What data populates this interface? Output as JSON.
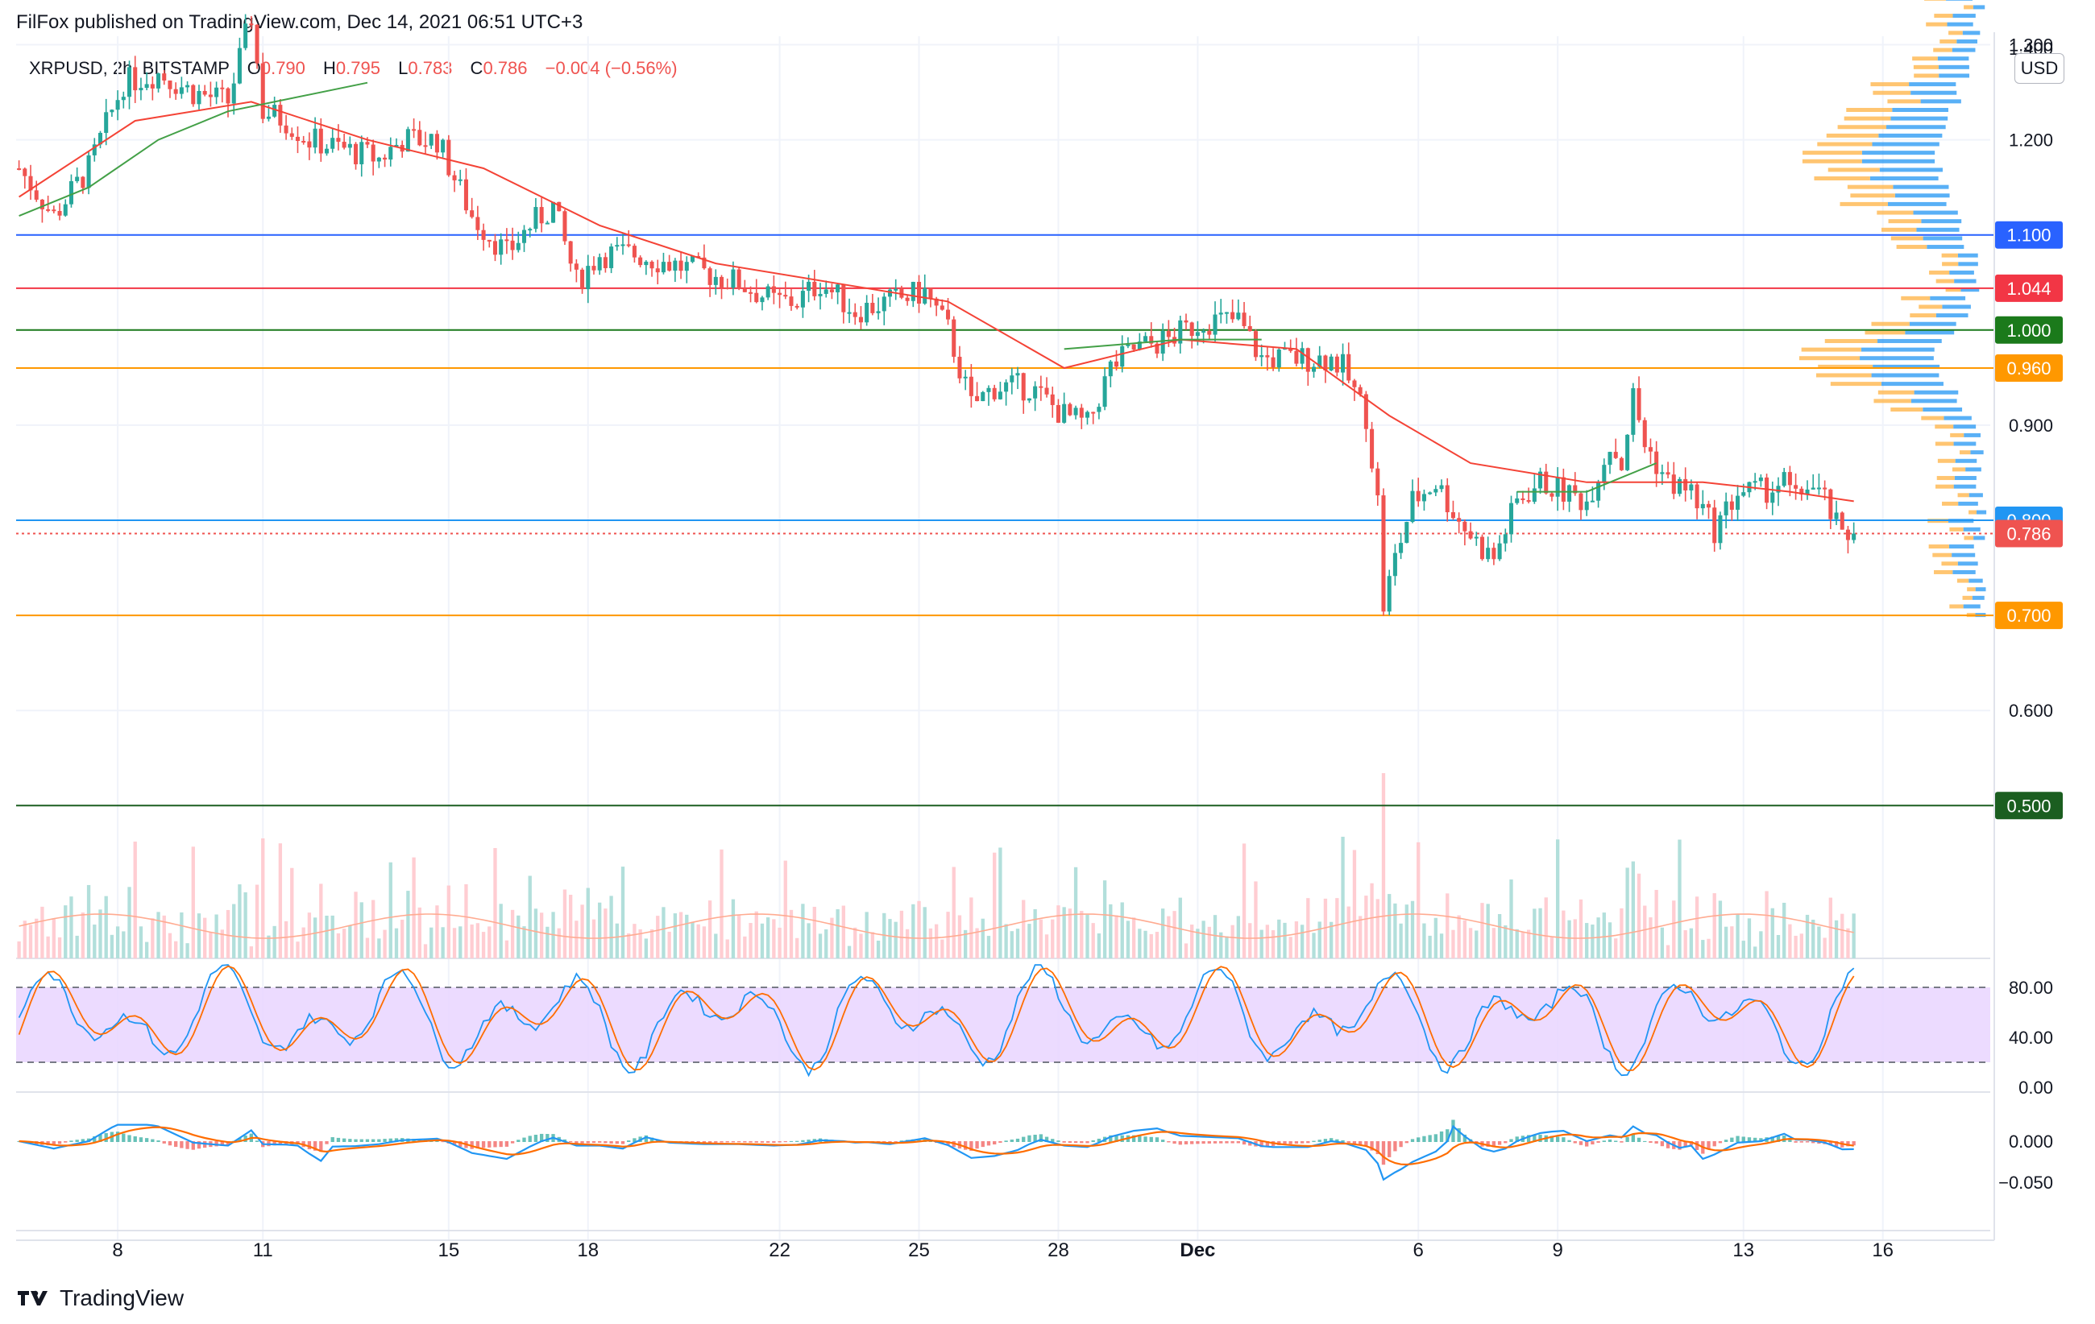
{
  "header": {
    "publisher": "FilFox published on TradingView.com, Dec 14, 2021 06:51 UTC+3"
  },
  "legend": {
    "symbol": "XRPUSD, 2h, BITSTAMP",
    "open_label": "O",
    "open": "0.790",
    "high_label": "H",
    "high": "0.795",
    "low_label": "L",
    "low": "0.783",
    "close_label": "C",
    "close": "0.786",
    "change": "−0.004 (−0.56%)"
  },
  "currency_button": "USD",
  "brand": {
    "name": "TradingView"
  },
  "colors": {
    "up": "#26a69a",
    "down": "#ef5350",
    "ema_red": "#f44336",
    "sma_green": "#43a047",
    "blue_line": "#2962ff",
    "green_line": "#1b5e20",
    "orange_line": "#ff9800",
    "stoch_fill": "#e9d5ff",
    "macd_blue": "#2196f3",
    "macd_orange": "#ff6d00"
  },
  "chart_data": [
    {
      "type": "candlestick",
      "ylim": [
        0.5,
        1.4
      ],
      "y_ticks": [
        "1.300",
        "1.200",
        "0.900",
        "0.600"
      ],
      "y_top_partial": "1.400",
      "x_tick_labels": [
        "8",
        "11",
        "15",
        "18",
        "22",
        "25",
        "28",
        "Dec",
        "6",
        "9",
        "13",
        "16"
      ],
      "price_path": [
        [
          0,
          1.17
        ],
        [
          6,
          1.12
        ],
        [
          12,
          1.17
        ],
        [
          18,
          1.26
        ],
        [
          24,
          1.27
        ],
        [
          30,
          1.25
        ],
        [
          36,
          1.24
        ],
        [
          40,
          1.33
        ],
        [
          42,
          1.23
        ],
        [
          46,
          1.22
        ],
        [
          50,
          1.2
        ],
        [
          56,
          1.19
        ],
        [
          62,
          1.18
        ],
        [
          66,
          1.2
        ],
        [
          72,
          1.2
        ],
        [
          78,
          1.12
        ],
        [
          84,
          1.08
        ],
        [
          88,
          1.11
        ],
        [
          92,
          1.13
        ],
        [
          96,
          1.05
        ],
        [
          100,
          1.08
        ],
        [
          106,
          1.08
        ],
        [
          112,
          1.07
        ],
        [
          118,
          1.06
        ],
        [
          124,
          1.05
        ],
        [
          130,
          1.03
        ],
        [
          134,
          1.03
        ],
        [
          138,
          1.05
        ],
        [
          144,
          1.02
        ],
        [
          150,
          1.03
        ],
        [
          156,
          1.04
        ],
        [
          160,
          1.0
        ],
        [
          164,
          0.92
        ],
        [
          168,
          0.94
        ],
        [
          174,
          0.94
        ],
        [
          180,
          0.91
        ],
        [
          184,
          0.9
        ],
        [
          188,
          0.96
        ],
        [
          192,
          0.98
        ],
        [
          198,
          0.99
        ],
        [
          204,
          1.01
        ],
        [
          210,
          1.01
        ],
        [
          214,
          0.97
        ],
        [
          220,
          0.97
        ],
        [
          226,
          0.97
        ],
        [
          228,
          0.96
        ],
        [
          232,
          0.91
        ],
        [
          234,
          0.82
        ],
        [
          235,
          0.71
        ],
        [
          237,
          0.76
        ],
        [
          240,
          0.82
        ],
        [
          244,
          0.84
        ],
        [
          248,
          0.8
        ],
        [
          252,
          0.77
        ],
        [
          254,
          0.76
        ],
        [
          258,
          0.82
        ],
        [
          262,
          0.84
        ],
        [
          266,
          0.83
        ],
        [
          270,
          0.82
        ],
        [
          274,
          0.88
        ],
        [
          276,
          0.86
        ],
        [
          278,
          0.93
        ],
        [
          280,
          0.88
        ],
        [
          284,
          0.84
        ],
        [
          288,
          0.83
        ],
        [
          292,
          0.79
        ],
        [
          296,
          0.83
        ],
        [
          300,
          0.83
        ],
        [
          304,
          0.84
        ],
        [
          306,
          0.82
        ],
        [
          308,
          0.84
        ],
        [
          311,
          0.82
        ],
        [
          314,
          0.78
        ],
        [
          316,
          0.786
        ]
      ],
      "series": [
        {
          "name": "",
          "style": "ema",
          "color": "#f44336",
          "points": [
            [
              0,
              1.14
            ],
            [
              20,
              1.22
            ],
            [
              40,
              1.24
            ],
            [
              60,
              1.2
            ],
            [
              80,
              1.17
            ],
            [
              100,
              1.11
            ],
            [
              120,
              1.07
            ],
            [
              140,
              1.05
            ],
            [
              160,
              1.03
            ],
            [
              180,
              0.96
            ],
            [
              200,
              0.99
            ],
            [
              220,
              0.98
            ],
            [
              236,
              0.91
            ],
            [
              250,
              0.86
            ],
            [
              270,
              0.84
            ],
            [
              290,
              0.84
            ],
            [
              305,
              0.83
            ],
            [
              316,
              0.82
            ]
          ]
        },
        {
          "name": "",
          "style": "sma",
          "color": "#43a047",
          "points": [
            [
              0,
              1.12
            ],
            [
              12,
              1.15
            ],
            [
              24,
              1.2
            ],
            [
              36,
              1.23
            ],
            [
              44,
              1.24
            ],
            [
              60,
              1.26
            ]
          ]
        },
        {
          "name": "",
          "style": "sma",
          "color": "#43a047",
          "points": [
            [
              180,
              0.98
            ],
            [
              200,
              0.99
            ],
            [
              214,
              0.99
            ]
          ]
        },
        {
          "name": "",
          "style": "sma",
          "color": "#43a047",
          "points": [
            [
              258,
              0.83
            ],
            [
              270,
              0.83
            ],
            [
              282,
              0.86
            ]
          ]
        }
      ],
      "horizontal_levels": [
        {
          "value": 1.1,
          "label": "1.100",
          "color": "#2962ff"
        },
        {
          "value": 1.044,
          "label": "1.044",
          "color": "#f23645"
        },
        {
          "value": 1.0,
          "label": "1.000",
          "color": "#1b7a1b"
        },
        {
          "value": 0.96,
          "label": "0.960",
          "color": "#ff9800"
        },
        {
          "value": 0.8,
          "label": "0.800",
          "color": "#2196f3"
        },
        {
          "value": 0.786,
          "label": "0.786",
          "color": "#ef5350",
          "style": "dotted"
        },
        {
          "value": 0.7,
          "label": "0.700",
          "color": "#ff9800"
        },
        {
          "value": 0.5,
          "label": "0.500",
          "color": "#1b5e20"
        }
      ],
      "volume": {
        "ma_color": "#ffab91"
      },
      "volume_profile": true
    },
    {
      "type": "line",
      "indicator": "stochastic",
      "ylim": [
        0,
        100
      ],
      "y_ticks": [
        "80.00",
        "40.00",
        "0.00"
      ],
      "bands": [
        80,
        20
      ]
    },
    {
      "type": "line",
      "indicator": "macd",
      "ylim": [
        -0.055,
        0.02
      ],
      "y_ticks": [
        "0.000",
        "−0.050"
      ]
    }
  ]
}
